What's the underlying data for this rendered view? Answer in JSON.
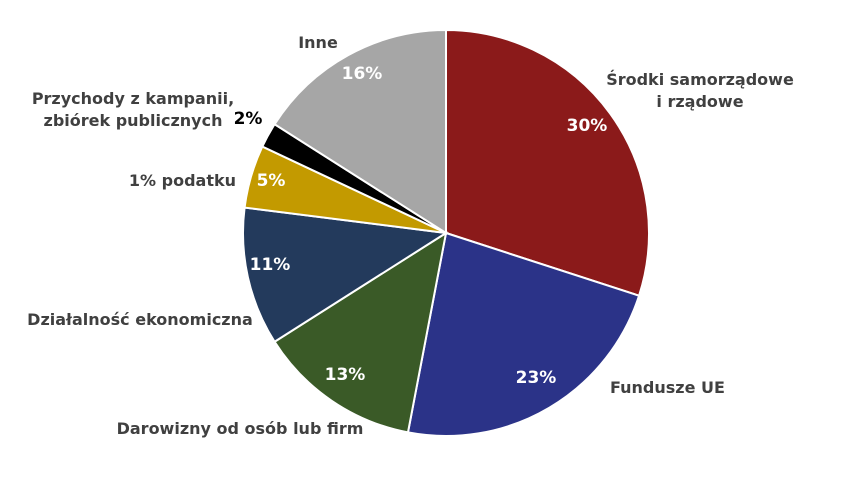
{
  "chart_data": {
    "type": "pie",
    "title": "",
    "slices": [
      {
        "label": [
          "Środki samorządowe",
          "i rządowe"
        ],
        "value": 30,
        "value_label": "30%",
        "color": "#8B1A1A",
        "value_label_color": "#ffffff"
      },
      {
        "label": [
          "Fundusze UE"
        ],
        "value": 23,
        "value_label": "23%",
        "color": "#2B3388",
        "value_label_color": "#ffffff"
      },
      {
        "label": [
          "Darowizny od osób lub firm"
        ],
        "value": 13,
        "value_label": "13%",
        "color": "#3A5A27",
        "value_label_color": "#ffffff"
      },
      {
        "label": [
          "Działalność ekonomiczna"
        ],
        "value": 11,
        "value_label": "11%",
        "color": "#233A5C",
        "value_label_color": "#ffffff"
      },
      {
        "label": [
          "1% podatku"
        ],
        "value": 5,
        "value_label": "5%",
        "color": "#C39A00",
        "value_label_color": "#ffffff"
      },
      {
        "label": [
          "Przychody z kampanii,",
          "zbiórek  publicznych"
        ],
        "value": 2,
        "value_label": "2%",
        "color": "#000000",
        "value_label_color": "#000000"
      },
      {
        "label": [
          "Inne"
        ],
        "value": 16,
        "value_label": "16%",
        "color": "#A6A6A6",
        "value_label_color": "#ffffff"
      }
    ]
  }
}
